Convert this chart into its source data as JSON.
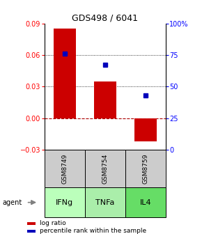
{
  "title": "GDS498 / 6041",
  "categories": [
    "IFNg",
    "TNFa",
    "IL4"
  ],
  "gsm_labels": [
    "GSM8749",
    "GSM8754",
    "GSM8759"
  ],
  "log_ratios": [
    0.085,
    0.035,
    -0.022
  ],
  "percentile_ranks": [
    76,
    67,
    43
  ],
  "bar_color": "#cc0000",
  "dot_color": "#0000bb",
  "ylim_left": [
    -0.03,
    0.09
  ],
  "ylim_right": [
    0,
    100
  ],
  "yticks_left": [
    -0.03,
    0,
    0.03,
    0.06,
    0.09
  ],
  "yticks_right": [
    0,
    25,
    50,
    75,
    100
  ],
  "ytick_labels_right": [
    "0",
    "25",
    "50",
    "75",
    "100%"
  ],
  "grid_lines": [
    0.03,
    0.06
  ],
  "zero_line": 0.0,
  "agent_colors": [
    "#bbffbb",
    "#aaeeaa",
    "#66dd66"
  ],
  "gsm_color": "#cccccc",
  "bar_width": 0.55,
  "legend_red_label": "log ratio",
  "legend_blue_label": "percentile rank within the sample",
  "agent_label": "agent"
}
